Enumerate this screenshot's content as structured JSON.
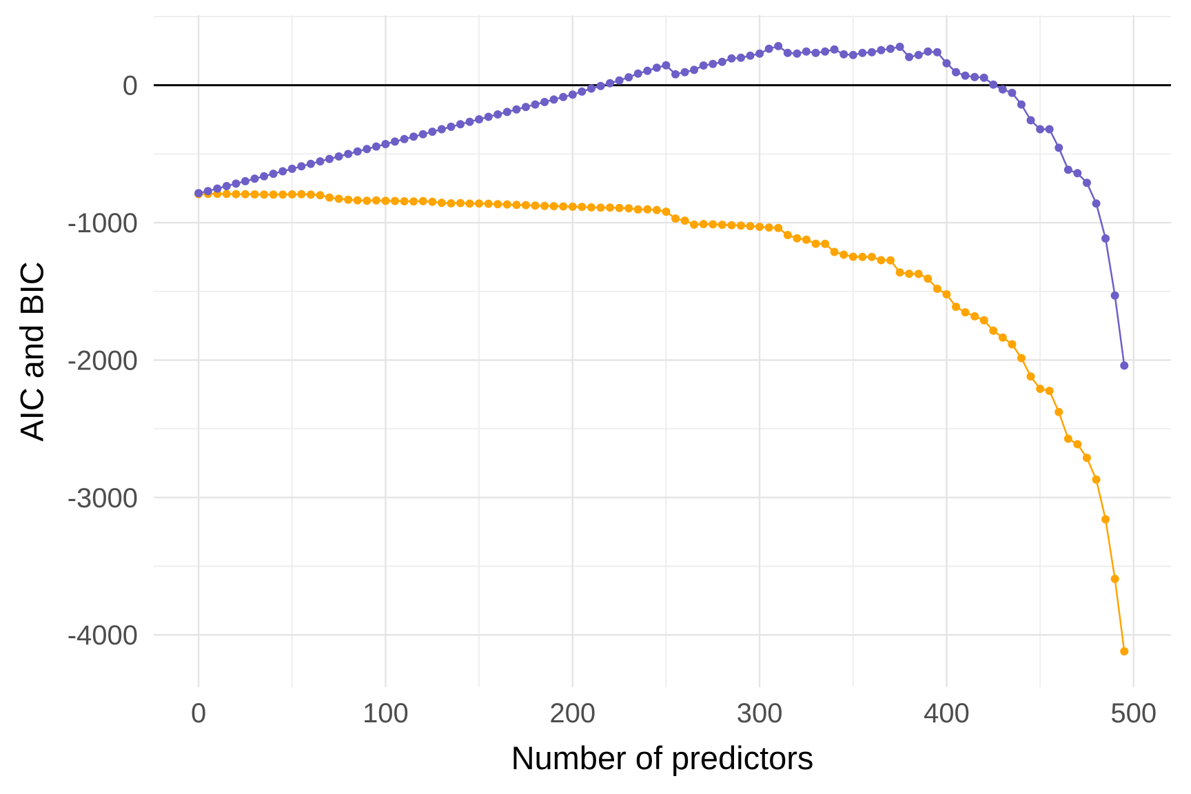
{
  "figure": {
    "x_axis_title": "Number of predictors",
    "y_axis_title": "AIC and BIC"
  },
  "chart_data": {
    "type": "line",
    "title": "",
    "xlabel": "Number of predictors",
    "ylabel": "AIC and BIC",
    "legend_position": "none",
    "grid": true,
    "reference_line_y": 0,
    "xlim": [
      -24,
      520
    ],
    "ylim": [
      -4380,
      510
    ],
    "x_ticks_major": {
      "values": [
        0,
        100,
        200,
        300,
        400,
        500
      ],
      "labels": [
        "0",
        "100",
        "200",
        "300",
        "400",
        "500"
      ]
    },
    "x_ticks_minor": [
      50,
      150,
      250,
      350,
      450
    ],
    "y_ticks_major": {
      "values": [
        0,
        -1000,
        -2000,
        -3000,
        -4000
      ],
      "labels": [
        "0",
        "-1000",
        "-2000",
        "-3000",
        "-4000"
      ]
    },
    "y_ticks_minor": [
      500,
      -500,
      -1500,
      -2500,
      -3500
    ],
    "x": [
      0,
      5,
      10,
      15,
      20,
      25,
      30,
      35,
      40,
      45,
      50,
      55,
      60,
      65,
      70,
      75,
      80,
      85,
      90,
      95,
      100,
      105,
      110,
      115,
      120,
      125,
      130,
      135,
      140,
      145,
      150,
      155,
      160,
      165,
      170,
      175,
      180,
      185,
      190,
      195,
      200,
      205,
      210,
      215,
      220,
      225,
      230,
      235,
      240,
      245,
      250,
      255,
      260,
      265,
      270,
      275,
      280,
      285,
      290,
      295,
      300,
      305,
      310,
      315,
      320,
      325,
      330,
      335,
      340,
      345,
      350,
      355,
      360,
      365,
      370,
      375,
      380,
      385,
      390,
      395,
      400,
      405,
      410,
      415,
      420,
      425,
      430,
      435,
      440,
      445,
      450,
      455,
      460,
      465,
      470,
      475,
      480,
      485,
      490,
      495
    ],
    "series": [
      {
        "name": "BIC",
        "color": "#ffa400",
        "values": [
          -792,
          -790,
          -790,
          -791,
          -792,
          -793,
          -794,
          -795,
          -795,
          -795,
          -794,
          -793,
          -796,
          -800,
          -817,
          -826,
          -833,
          -837,
          -840,
          -838,
          -841,
          -842,
          -844,
          -845,
          -843,
          -848,
          -855,
          -859,
          -857,
          -861,
          -860,
          -862,
          -865,
          -867,
          -870,
          -872,
          -875,
          -878,
          -880,
          -882,
          -884,
          -885,
          -889,
          -891,
          -890,
          -893,
          -896,
          -904,
          -903,
          -908,
          -920,
          -970,
          -985,
          -1014,
          -1010,
          -1012,
          -1015,
          -1018,
          -1021,
          -1025,
          -1030,
          -1035,
          -1038,
          -1090,
          -1114,
          -1124,
          -1153,
          -1154,
          -1213,
          -1233,
          -1248,
          -1249,
          -1249,
          -1273,
          -1274,
          -1362,
          -1372,
          -1373,
          -1407,
          -1481,
          -1521,
          -1612,
          -1652,
          -1681,
          -1711,
          -1786,
          -1836,
          -1885,
          -1985,
          -2119,
          -2209,
          -2224,
          -2378,
          -2572,
          -2612,
          -2711,
          -2870,
          -3159,
          -3592,
          -4119
        ]
      },
      {
        "name": "AIC",
        "color": "#6c5fc7",
        "values": [
          -785,
          -770,
          -752,
          -734,
          -716,
          -698,
          -680,
          -662,
          -644,
          -626,
          -608,
          -590,
          -572,
          -554,
          -536,
          -518,
          -500,
          -482,
          -464,
          -446,
          -428,
          -410,
          -392,
          -374,
          -356,
          -338,
          -320,
          -302,
          -284,
          -266,
          -248,
          -230,
          -212,
          -194,
          -176,
          -158,
          -140,
          -122,
          -104,
          -86,
          -68,
          -46,
          -24,
          -5,
          15,
          35,
          58,
          85,
          105,
          128,
          145,
          80,
          95,
          112,
          144,
          155,
          170,
          195,
          200,
          215,
          230,
          265,
          285,
          235,
          230,
          245,
          235,
          245,
          260,
          225,
          220,
          235,
          240,
          255,
          265,
          280,
          205,
          220,
          245,
          240,
          160,
          95,
          70,
          60,
          55,
          5,
          -30,
          -55,
          -140,
          -255,
          -320,
          -320,
          -455,
          -615,
          -640,
          -710,
          -860,
          -1115,
          -1530,
          -2040
        ]
      }
    ],
    "colors": {
      "grid_major": "#e4e4e4",
      "grid_minor": "#ededed",
      "axis_text": "#4d4d4d",
      "axis_title": "#000000",
      "reference_line": "#000000",
      "background": "#ffffff"
    }
  }
}
